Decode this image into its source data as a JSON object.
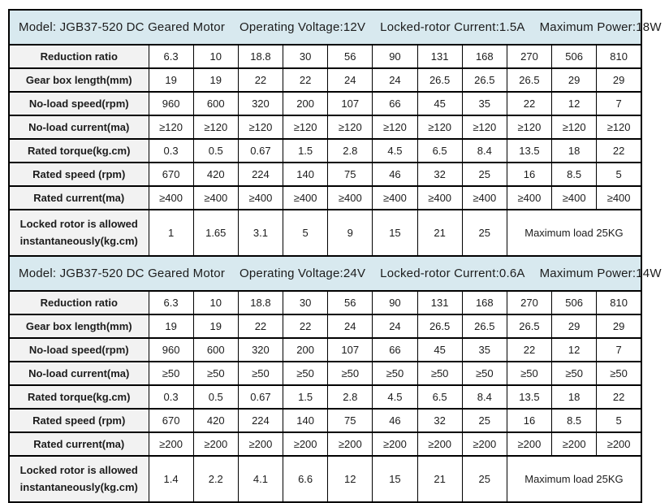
{
  "colors": {
    "header_band_bg": "#d8e9ef",
    "label_column_bg": "#f2f2f2",
    "border": "#000000"
  },
  "tables": [
    {
      "header": {
        "model": "Model: JGB37-520 DC Geared Motor",
        "voltage": "Operating Voltage:12V",
        "locked_rotor": "Locked-rotor Current:1.5A",
        "max_power": "Maximum Power:18W"
      },
      "rows": [
        {
          "label": "Reduction ratio",
          "values": [
            "6.3",
            "10",
            "18.8",
            "30",
            "56",
            "90",
            "131",
            "168",
            "270",
            "506",
            "810"
          ]
        },
        {
          "label": "Gear box length(mm)",
          "values": [
            "19",
            "19",
            "22",
            "22",
            "24",
            "24",
            "26.5",
            "26.5",
            "26.5",
            "29",
            "29"
          ]
        },
        {
          "label": "No-load speed(rpm)",
          "values": [
            "960",
            "600",
            "320",
            "200",
            "107",
            "66",
            "45",
            "35",
            "22",
            "12",
            "7"
          ]
        },
        {
          "label": "No-load current(ma)",
          "values": [
            "≥120",
            "≥120",
            "≥120",
            "≥120",
            "≥120",
            "≥120",
            "≥120",
            "≥120",
            "≥120",
            "≥120",
            "≥120"
          ]
        },
        {
          "label": "Rated torque(kg.cm)",
          "values": [
            "0.3",
            "0.5",
            "0.67",
            "1.5",
            "2.8",
            "4.5",
            "6.5",
            "8.4",
            "13.5",
            "18",
            "22"
          ]
        },
        {
          "label": "Rated speed (rpm)",
          "values": [
            "670",
            "420",
            "224",
            "140",
            "75",
            "46",
            "32",
            "25",
            "16",
            "8.5",
            "5"
          ]
        },
        {
          "label": "Rated current(ma)",
          "values": [
            "≥400",
            "≥400",
            "≥400",
            "≥400",
            "≥400",
            "≥400",
            "≥400",
            "≥400",
            "≥400",
            "≥400",
            "≥400"
          ]
        }
      ],
      "locked_rotor_row": {
        "label_line1": "Locked rotor is allowed",
        "label_line2": "instantaneously(kg.cm)",
        "values": [
          "1",
          "1.65",
          "3.1",
          "5",
          "9",
          "15",
          "21",
          "25"
        ],
        "merged": "Maximum load 25KG"
      }
    },
    {
      "header": {
        "model": "Model: JGB37-520 DC Geared Motor",
        "voltage": "Operating Voltage:24V",
        "locked_rotor": "Locked-rotor Current:0.6A",
        "max_power": "Maximum Power:14W"
      },
      "rows": [
        {
          "label": "Reduction ratio",
          "values": [
            "6.3",
            "10",
            "18.8",
            "30",
            "56",
            "90",
            "131",
            "168",
            "270",
            "506",
            "810"
          ]
        },
        {
          "label": "Gear box length(mm)",
          "values": [
            "19",
            "19",
            "22",
            "22",
            "24",
            "24",
            "26.5",
            "26.5",
            "26.5",
            "29",
            "29"
          ]
        },
        {
          "label": "No-load speed(rpm)",
          "values": [
            "960",
            "600",
            "320",
            "200",
            "107",
            "66",
            "45",
            "35",
            "22",
            "12",
            "7"
          ]
        },
        {
          "label": "No-load current(ma)",
          "values": [
            "≥50",
            "≥50",
            "≥50",
            "≥50",
            "≥50",
            "≥50",
            "≥50",
            "≥50",
            "≥50",
            "≥50",
            "≥50"
          ]
        },
        {
          "label": "Rated torque(kg.cm)",
          "values": [
            "0.3",
            "0.5",
            "0.67",
            "1.5",
            "2.8",
            "4.5",
            "6.5",
            "8.4",
            "13.5",
            "18",
            "22"
          ]
        },
        {
          "label": "Rated speed (rpm)",
          "values": [
            "670",
            "420",
            "224",
            "140",
            "75",
            "46",
            "32",
            "25",
            "16",
            "8.5",
            "5"
          ]
        },
        {
          "label": "Rated current(ma)",
          "values": [
            "≥200",
            "≥200",
            "≥200",
            "≥200",
            "≥200",
            "≥200",
            "≥200",
            "≥200",
            "≥200",
            "≥200",
            "≥200"
          ]
        }
      ],
      "locked_rotor_row": {
        "label_line1": "Locked rotor is allowed",
        "label_line2": "instantaneously(kg.cm)",
        "values": [
          "1.4",
          "2.2",
          "4.1",
          "6.6",
          "12",
          "15",
          "21",
          "25"
        ],
        "merged": "Maximum load 25KG"
      }
    }
  ]
}
